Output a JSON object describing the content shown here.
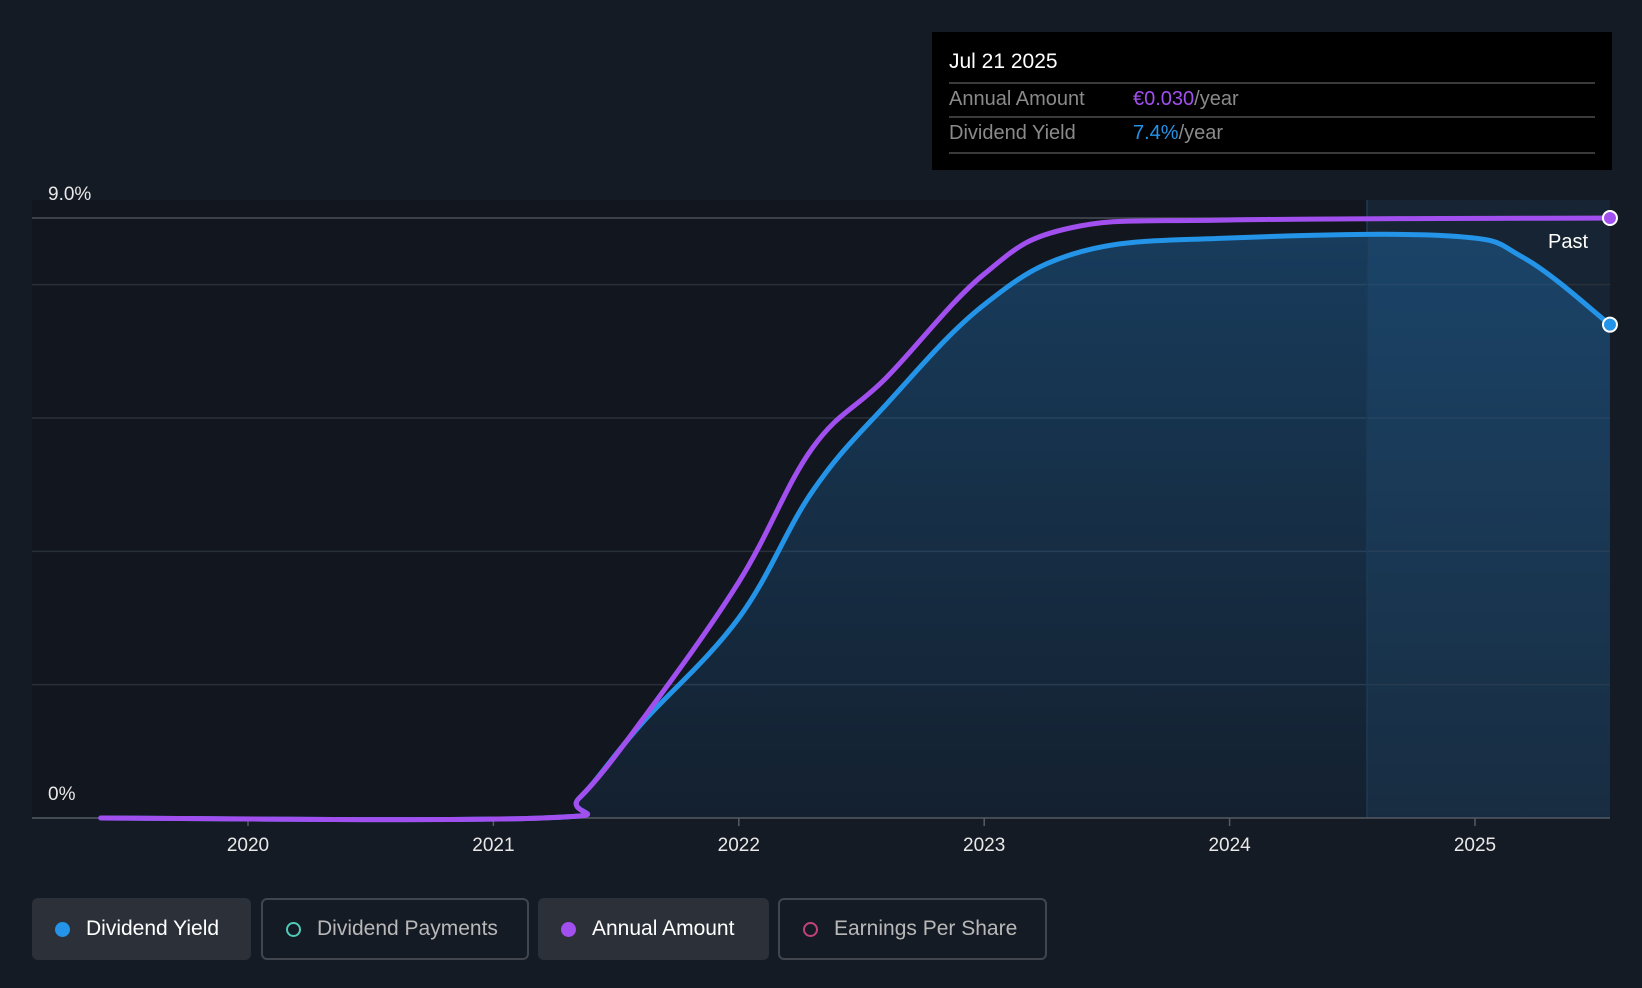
{
  "chart_data": {
    "type": "line",
    "title": "",
    "y_axis": {
      "min": 0,
      "max": 9.0,
      "unit": "%",
      "labels": [
        "9.0%",
        "0%"
      ],
      "gridlines": [
        2,
        4,
        6,
        8,
        9
      ]
    },
    "x_axis": {
      "min": 2019.25,
      "max": 2025.55,
      "ticks": [
        2020,
        2021,
        2022,
        2023,
        2024,
        2025
      ],
      "tick_labels": [
        "2020",
        "2021",
        "2022",
        "2023",
        "2024",
        "2025"
      ]
    },
    "past_region_start": 2024.56,
    "past_label": "Past",
    "series": [
      {
        "name": "Dividend Yield",
        "unit": "%",
        "color": "#2394e8",
        "points": [
          [
            2019.4,
            0
          ],
          [
            2021.2,
            0
          ],
          [
            2021.35,
            0.3
          ],
          [
            2021.6,
            1.4
          ],
          [
            2022,
            3.0
          ],
          [
            2022.3,
            4.9
          ],
          [
            2022.6,
            6.2
          ],
          [
            2023,
            7.7
          ],
          [
            2023.4,
            8.5
          ],
          [
            2024,
            8.7
          ],
          [
            2024.9,
            8.73
          ],
          [
            2025.2,
            8.4
          ],
          [
            2025.55,
            7.4
          ]
        ]
      },
      {
        "name": "Annual Amount",
        "unit": "€",
        "axis_max": 0.03,
        "color": "#a24ff0",
        "points": [
          [
            2019.4,
            0
          ],
          [
            2021.2,
            0
          ],
          [
            2021.35,
            0.001
          ],
          [
            2021.6,
            0.0048
          ],
          [
            2022,
            0.0118
          ],
          [
            2022.3,
            0.0185
          ],
          [
            2022.6,
            0.022
          ],
          [
            2023,
            0.0272
          ],
          [
            2023.35,
            0.0295
          ],
          [
            2024,
            0.0299
          ],
          [
            2025.55,
            0.03
          ]
        ]
      }
    ]
  },
  "tooltip": {
    "date": "Jul 21 2025",
    "rows": [
      {
        "label": "Annual Amount",
        "value": "€0.030",
        "suffix": "/year",
        "color": "#a24ff0"
      },
      {
        "label": "Dividend Yield",
        "value": "7.4%",
        "suffix": "/year",
        "color": "#2394e8"
      }
    ]
  },
  "legend": [
    {
      "label": "Dividend Yield",
      "active": true,
      "color": "#2394e8"
    },
    {
      "label": "Dividend Payments",
      "active": false,
      "color": "#4fc9b8"
    },
    {
      "label": "Annual Amount",
      "active": true,
      "color": "#a24ff0"
    },
    {
      "label": "Earnings Per Share",
      "active": false,
      "color": "#c0427a"
    }
  ]
}
